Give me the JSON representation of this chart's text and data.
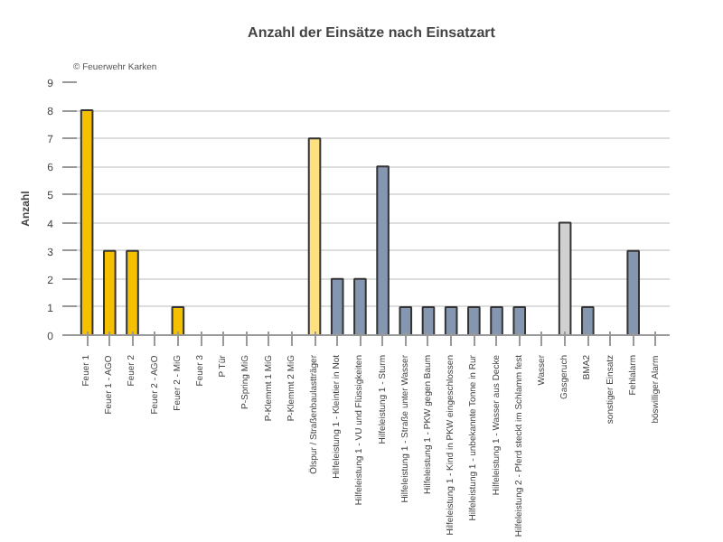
{
  "chart_data": {
    "type": "bar",
    "title": "Anzahl der Einsätze nach Einsatzart",
    "ylabel": "Anzahl",
    "annotations": [
      "© Feuerwehr Karken"
    ],
    "categories": [
      "Feuer 1",
      "Feuer 1 - AGO",
      "Feuer 2",
      "Feuer 2 - AGO",
      "Feuer 2 - MiG",
      "Feuer 3",
      "P Tür",
      "P-Spring MiG",
      "P-Klemmt 1 MiG",
      "P-Klemmt 2 MiG",
      "Ölspur / Straßenbaulastträger",
      "Hilfeleistung 1 - Kleintier in Not",
      "Hilfeleistung 1 - VU und Flüssigkeiten",
      "Hilfeleistung 1 - Sturm",
      "Hilfeleistung 1 - Straße unter Wasser",
      "Hilfeleistung 1 - PKW gegen Baum",
      "Hilfeleistung 1 - Kind in PKW eingeschlossen",
      "Hilfeleistung 1 - unbekannte Tonne in Rur",
      "Hilfeleistung 1 - Wasser aus Decke",
      "Hilfeleistung 2 - Pferd steckt im Schlamm fest",
      "Wasser",
      "Gasgeruch",
      "BMA2",
      "sonstiger Einsatz",
      "Fehlalarm",
      "böswilliger Alarm"
    ],
    "values": [
      8,
      3,
      3,
      0,
      1,
      0,
      0,
      0,
      0,
      0,
      7,
      2,
      2,
      6,
      1,
      1,
      1,
      1,
      1,
      1,
      0,
      4,
      1,
      0,
      3,
      0
    ],
    "colors": [
      "#f5c000",
      "#f5c000",
      "#f5c000",
      null,
      "#f5c000",
      null,
      null,
      null,
      null,
      null,
      "#ffe080",
      "#8496b0",
      "#8496b0",
      "#8496b0",
      "#8496b0",
      "#8496b0",
      "#8496b0",
      "#8496b0",
      "#8496b0",
      "#8496b0",
      null,
      "#d0d0d0",
      "#8496b0",
      null,
      "#8496b0",
      null
    ],
    "ylim": [
      0,
      9
    ],
    "yticks": [
      0,
      1,
      2,
      3,
      4,
      5,
      6,
      7,
      8,
      9
    ],
    "grid": "y"
  }
}
